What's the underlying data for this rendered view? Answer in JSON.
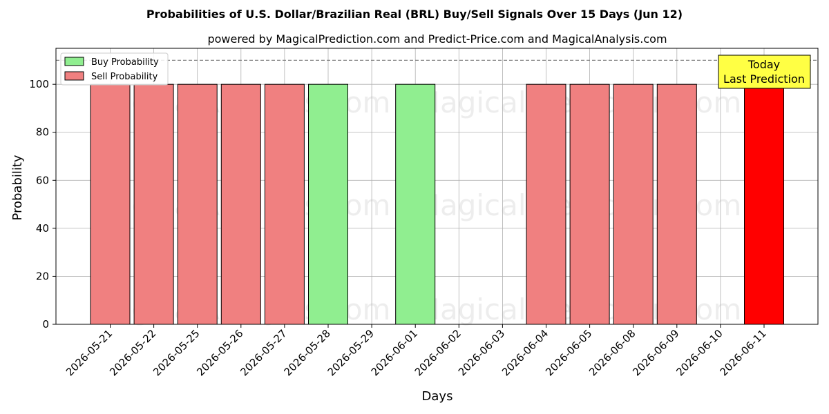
{
  "chart_data": {
    "type": "bar",
    "title": "Probabilities of U.S. Dollar/Brazilian Real (BRL) Buy/Sell Signals Over 15 Days (Jun 12)",
    "subtitle": "powered by MagicalPrediction.com and Predict-Price.com and MagicalAnalysis.com",
    "xlabel": "Days",
    "ylabel": "Probability",
    "ylim": [
      0,
      115
    ],
    "yticks": [
      0,
      20,
      40,
      60,
      80,
      100
    ],
    "grid": true,
    "legend_placement": "top-left",
    "reference_line": 110,
    "categories": [
      "2026-05-21",
      "2026-05-22",
      "2026-05-25",
      "2026-05-26",
      "2026-05-27",
      "2026-05-28",
      "2026-05-29",
      "2026-06-01",
      "2026-06-02",
      "2026-06-03",
      "2026-06-04",
      "2026-06-05",
      "2026-06-08",
      "2026-06-09",
      "2026-06-10",
      "2026-06-11"
    ],
    "series": [
      {
        "name": "Buy Probability",
        "color": "#90ee90",
        "values": [
          0,
          0,
          0,
          0,
          0,
          100,
          0,
          100,
          0,
          0,
          0,
          0,
          0,
          0,
          0,
          0
        ]
      },
      {
        "name": "Sell Probability",
        "color": "#f08080",
        "values": [
          100,
          100,
          100,
          100,
          100,
          0,
          0,
          0,
          0,
          0,
          100,
          100,
          100,
          100,
          0,
          100
        ]
      }
    ],
    "highlight": {
      "category": "2026-06-11",
      "color": "#ff0000"
    },
    "annotation": {
      "line1": "Today",
      "line2": "Last Prediction",
      "background": "#ffff44"
    },
    "watermarks": [
      "MagicalAnalysis.com",
      "MagicalPrediction.com"
    ]
  }
}
